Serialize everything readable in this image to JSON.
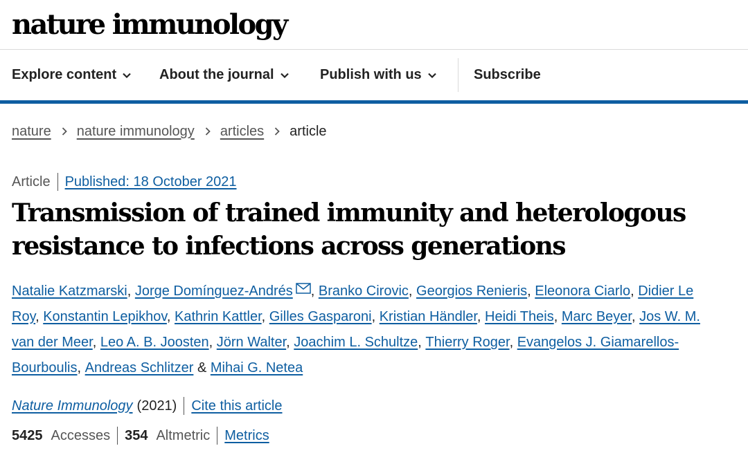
{
  "brand": {
    "logo": "nature immunology"
  },
  "nav": {
    "items": [
      {
        "label": "Explore content"
      },
      {
        "label": "About the journal"
      },
      {
        "label": "Publish with us"
      }
    ],
    "subscribe": "Subscribe"
  },
  "breadcrumbs": {
    "items": [
      "nature",
      "nature immunology",
      "articles"
    ],
    "current": "article"
  },
  "article": {
    "type": "Article",
    "published": "Published: 18 October 2021",
    "title": "Transmission of trained immunity and heterologous resistance to infections across generations",
    "authors": [
      "Natalie Katzmarski",
      "Jorge Domínguez-Andrés",
      "Branko Cirovic",
      "Georgios Renieris",
      "Eleonora Ciarlo",
      "Didier Le Roy",
      "Konstantin Lepikhov",
      "Kathrin Kattler",
      "Gilles Gasparoni",
      "Kristian Händler",
      "Heidi Theis",
      "Marc Beyer",
      "Jos W. M. van der Meer",
      "Leo A. B. Joosten",
      "Jörn Walter",
      "Joachim L. Schultze",
      "Thierry Roger",
      "Evangelos J. Giamarellos-Bourboulis",
      "Andreas Schlitzer",
      "Mihai G. Netea"
    ],
    "author_separator": ", ",
    "last_author_separator": " & ",
    "corresponding_icon": "mail-icon",
    "journal": "Nature Immunology",
    "year": "(2021)",
    "cite": "Cite this article"
  },
  "metrics": {
    "accesses_value": "5425",
    "accesses_label": "Accesses",
    "altmetric_value": "354",
    "altmetric_label": "Altmetric",
    "metrics_link": "Metrics"
  },
  "colors": {
    "link": "#0e5ea1",
    "nav_border": "#0e5ea1",
    "text": "#222222",
    "muted": "#555555"
  }
}
